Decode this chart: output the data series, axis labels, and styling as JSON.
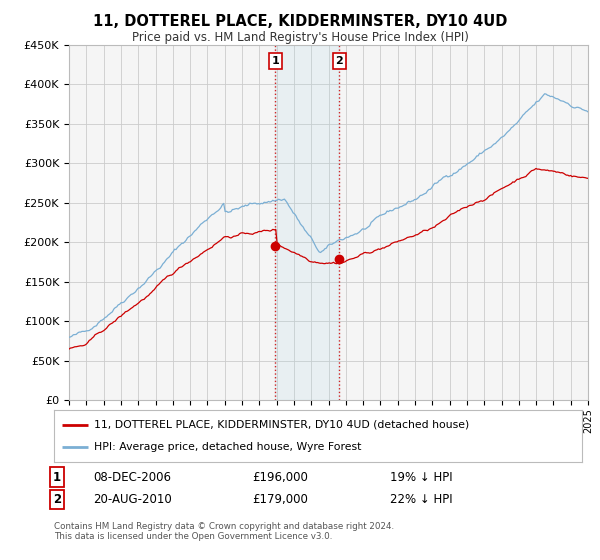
{
  "title": "11, DOTTEREL PLACE, KIDDERMINSTER, DY10 4UD",
  "subtitle": "Price paid vs. HM Land Registry's House Price Index (HPI)",
  "legend_label_red": "11, DOTTEREL PLACE, KIDDERMINSTER, DY10 4UD (detached house)",
  "legend_label_blue": "HPI: Average price, detached house, Wyre Forest",
  "footnote1": "Contains HM Land Registry data © Crown copyright and database right 2024.",
  "footnote2": "This data is licensed under the Open Government Licence v3.0.",
  "sale1_label": "1",
  "sale1_date": "08-DEC-2006",
  "sale1_price": "£196,000",
  "sale1_hpi": "19% ↓ HPI",
  "sale1_year": 2006.93,
  "sale1_value": 196000,
  "sale2_label": "2",
  "sale2_date": "20-AUG-2010",
  "sale2_price": "£179,000",
  "sale2_hpi": "22% ↓ HPI",
  "sale2_year": 2010.63,
  "sale2_value": 179000,
  "ylim": [
    0,
    450000
  ],
  "yticks": [
    0,
    50000,
    100000,
    150000,
    200000,
    250000,
    300000,
    350000,
    400000,
    450000
  ],
  "xlim_start": 1995,
  "xlim_end": 2025,
  "bg_color": "#f5f5f5",
  "grid_color": "#cccccc",
  "red_color": "#cc0000",
  "blue_color": "#7bafd4"
}
